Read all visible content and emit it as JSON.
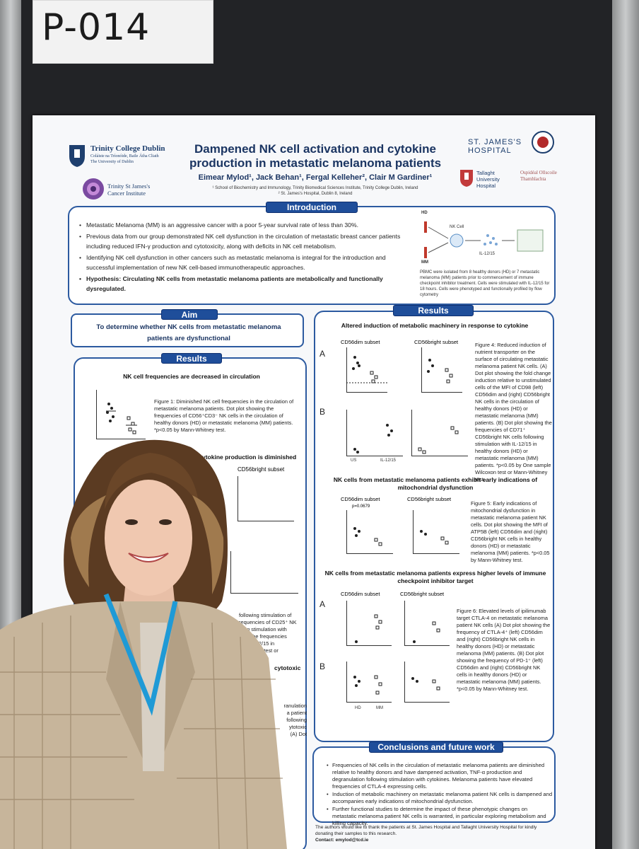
{
  "booth": {
    "number": "P-014"
  },
  "poster": {
    "institutions": {
      "tcd_name": "Trinity College Dublin",
      "tcd_irish": "Coláiste na Tríonóide, Baile Átha Cliath",
      "tcd_sub": "The University of Dublin",
      "cancer_inst": "Trinity St James's Cancer Institute",
      "stjames": "ST. JAMES'S HOSPITAL",
      "tallaght": "Tallaght University Hospital",
      "tallaght_irish": "Ospidéal Ollscoile Thamhlachta"
    },
    "title_line1": "Dampened NK cell activation and cytokine",
    "title_line2": "production in metastatic melanoma patients",
    "authors": "Eimear Mylod¹, Jack Behan¹, Fergal Kelleher², Clair M Gardiner¹",
    "affil1": "¹ School of Biochemistry and Immunology, Trinity Biomedical Sciences Institute, Trinity College Dublin, Ireland",
    "affil2": "² St. James's Hospital, Dublin 8, Ireland",
    "intro": {
      "heading": "Introduction",
      "bullets": [
        "Metastatic Melanoma (MM) is an aggressive cancer with a poor 5-year survival rate of less than 30%.",
        "Previous data from our group demonstrated NK cell dysfunction in the circulation of metastatic breast cancer patients including reduced IFN-γ production and cytotoxicity, along with deficits in NK cell metabolism.",
        "Identifying NK cell dysfunction in other cancers such as metastatic melanoma is integral for the introduction and successful implementation of new NK cell-based immunotherapeutic approaches.",
        "Hypothesis: Circulating NK cells from metastatic melanoma patients are metabolically and functionally dysregulated."
      ],
      "diagram_hd": "HD",
      "diagram_mm": "MM",
      "diagram_nk": "NK Cell",
      "diagram_il": "IL-12/15",
      "diagram_caption": "PBMC were isolated from 8 healthy donors (HD) or 7 metastatic melanoma (MM) patients prior to commencement of immune checkpoint inhibitor treatment. Cells were stimulated with IL-12/15 for 18 hours. Cells were phenotyped and functionally profiled by flow cytometry"
    },
    "aim": {
      "heading": "Aim",
      "text": "To determine whether NK cells from metastatic melanoma patients are dysfunctional"
    },
    "results_left": {
      "heading": "Results",
      "sec1_title": "NK cell frequencies are decreased in circulation",
      "fig1_caption": "Figure 1: Diminished NK cell frequencies in the circulation of metastatic melanoma patients. Dot plot showing the frequencies of CD56⁺CD3⁻ NK cells in the circulation of healthy donors (HD) or metastatic melanoma (MM) patients. *p<0.05 by Mann-Whitney test.",
      "sec2_title": "ytokine production is diminished",
      "sec2_subset": "CD56bright subset",
      "frag1": "following stimulation of",
      "frag2": "requencies of CD25⁺ NK",
      "frag3": "wing stimulation with",
      "frag4": "wing the frequencies",
      "frag5": "with IL-12/15 in",
      "frag6": "n-Whitney test or",
      "sec3_frag": "cytotoxic",
      "frag7": "ranulation",
      "frag8": "a patient",
      "frag9": "following",
      "frag10": "ytotoxic",
      "frag11": "(A) Dot"
    },
    "results_right": {
      "heading": "Results",
      "sec1_title": "Altered induction of metabolic machinery in response to cytokine",
      "subset_dim": "CD56dim subset",
      "subset_bright": "CD56bright subset",
      "fig4_caption": "Figure 4: Reduced induction of nutrient transporter on the surface of circulating metastatic melanoma patient NK cells. (A) Dot plot showing the fold change induction relative to unstimulated cells of the MFI of CD98 (left) CD56dim and (right) CD56bright NK cells in the circulation of healthy donors (HD) or metastatic melanoma (MM) patients. (B) Dot plot showing the frequencies of CD71⁺ CD56bright NK cells following stimulation with IL-12/15 in healthy donors (HD) or metastatic melanoma (MM) patients. *p<0.05 by One sample Wilcoxon test or Mann-Whitney test.",
      "sec2_title": "NK cells from metastatic melanoma patients exhibit early indications of mitochondrial dysfunction",
      "pval": "p=0.0679",
      "fig5_caption": "Figure 5: Early indications of mitochondrial dysfunction in metastatic melanoma patient NK cells. Dot plot showing the MFI of ATP5B (left) CD56dim and (right) CD56bright NK cells in healthy donors (HD) or metastatic melanoma (MM) patients. *p<0.05 by Mann-Whitney test.",
      "sec3_title": "NK cells from metastatic melanoma patients express higher levels of immune checkpoint inhibitor target",
      "fig6_caption": "Figure 6: Elevated levels of ipilimumab target CTLA-4 on metastatic melanoma patient NK cells (A) Dot plot showing the frequency of CTLA-4⁺ (left) CD56dim and (right) CD56bright NK cells in healthy donors (HD) or metastatic melanoma (MM) patients. (B) Dot plot showing the frequency of PD-1⁺ (left) CD56dim and (right) CD56bright NK cells in healthy donors (HD) or metastatic melanoma (MM) patients. *p<0.05 by Mann-Whitney test.",
      "hd": "HD",
      "mm": "MM",
      "us": "US",
      "il": "IL-12/15",
      "label_a": "A",
      "label_b": "B"
    },
    "conclusions": {
      "heading": "Conclusions and future work",
      "bullets": [
        "Frequencies of NK cells in the circulation of metastatic melanoma patients are diminished relative to healthy donors and have dampened activation, TNF-α production and degranulation following stimulation with cytokines. Melanoma patients have elevated frequencies of CTLA-4 expressing cells.",
        "Induction of metabolic machinery on metastatic melanoma patient NK cells is dampened and accompanies early indications of mitochondrial dysfunction.",
        "Further functional studies to determine the impact of these phenotypic changes on metastatic melanoma patient NK cells is warranted, in particular exploring metabolism and killing capacity."
      ]
    },
    "ack": "The authors would like to thank the patients at St. James Hospital and Tallaght University Hospital for kindly donating their samples to this research.",
    "contact": "Contact: emylod@tcd.ie"
  },
  "colors": {
    "poster_blue": "#1f4e9a",
    "panel": "#222326",
    "jacket": "#c9b79d",
    "lanyard": "#1f9ad6"
  }
}
